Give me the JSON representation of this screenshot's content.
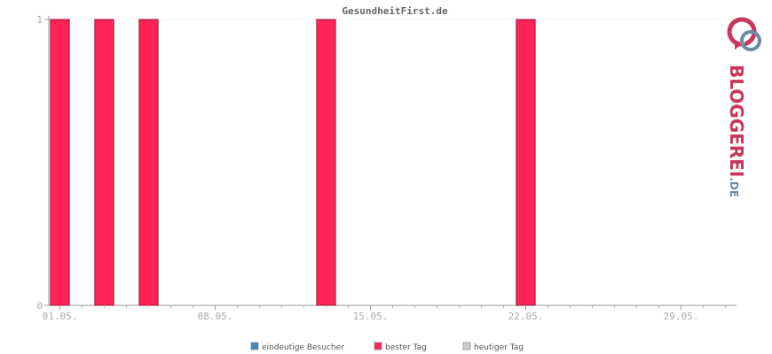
{
  "chart_data": {
    "type": "bar",
    "title": "GesundheitFirst.de",
    "xlabel": "",
    "ylabel": "",
    "x_tick_labels": [
      "01.05.",
      "08.05.",
      "15.05.",
      "22.05.",
      "29.05."
    ],
    "y_tick_labels": [
      "0",
      "1"
    ],
    "ylim": [
      0,
      1
    ],
    "days_in_range": 31,
    "grid": true,
    "legend_position": "bottom-center",
    "series": [
      {
        "name": "eindeutige Besucher",
        "color": "#4a86b8",
        "values": []
      },
      {
        "name": "bester Tag",
        "color": "#ff2358",
        "values": [
          {
            "x": "01.05.",
            "y": 1
          },
          {
            "x": "03.05.",
            "y": 1
          },
          {
            "x": "05.05.",
            "y": 1
          },
          {
            "x": "13.05.",
            "y": 1
          },
          {
            "x": "22.05.",
            "y": 1
          }
        ]
      },
      {
        "name": "heutiger Tag",
        "color": "#cccccc",
        "values": []
      }
    ]
  },
  "logo": {
    "text": "BLOGGEREI",
    "suffix": ".DE",
    "colors": {
      "primary": "#c8375a",
      "secondary": "#6b8aa3"
    }
  }
}
